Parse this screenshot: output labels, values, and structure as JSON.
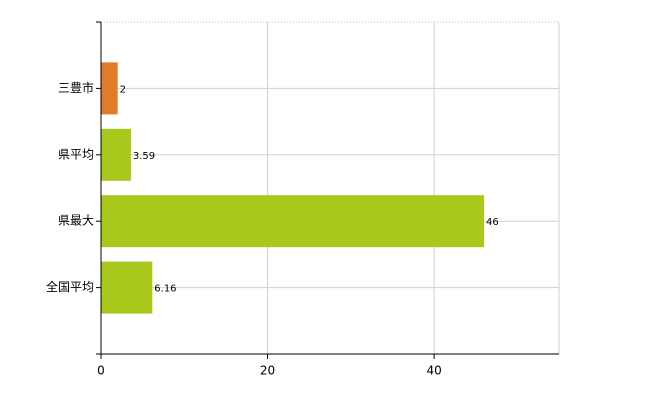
{
  "chart_data": {
    "type": "bar",
    "orientation": "horizontal",
    "categories": [
      "三豊市",
      "県平均",
      "県最大",
      "全国平均"
    ],
    "values": [
      2,
      3.59,
      46,
      6.16
    ],
    "colors": [
      "#e07b28",
      "#a8c81c",
      "#a8c81c",
      "#a8c81c"
    ],
    "xlim": [
      0,
      55
    ],
    "xticks": [
      0,
      20,
      40
    ],
    "grid": true
  }
}
